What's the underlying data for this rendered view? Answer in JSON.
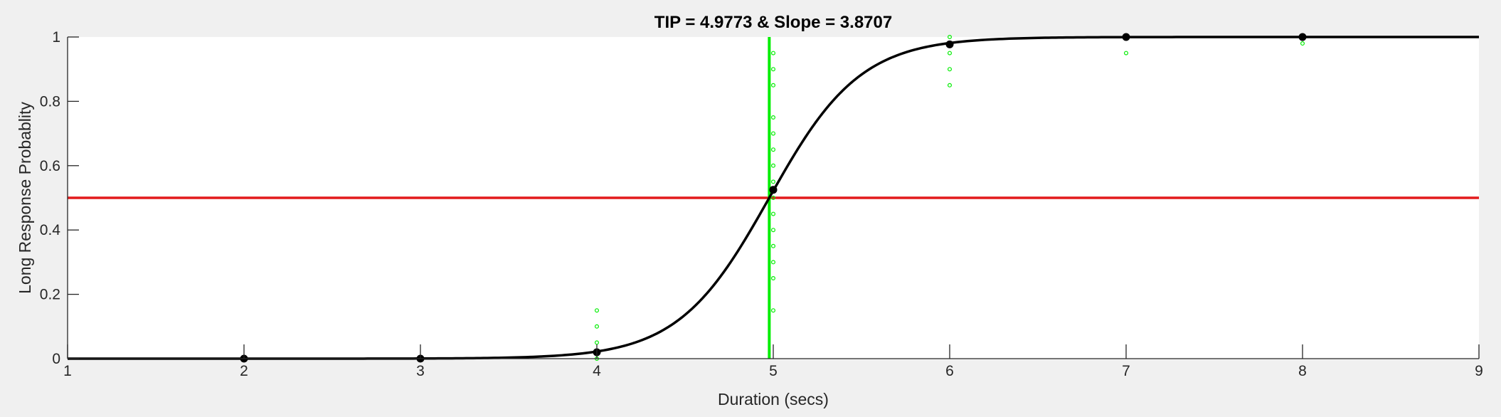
{
  "chart_data": {
    "type": "line",
    "title": "TIP = 4.9773 & Slope = 3.8707",
    "xlabel": "Duration (secs)",
    "ylabel": "Long Response Probablity",
    "xlim": [
      1,
      9
    ],
    "ylim": [
      0,
      1
    ],
    "xticks": [
      1,
      2,
      3,
      4,
      5,
      6,
      7,
      8,
      9
    ],
    "xtick_labels": [
      "1",
      "2",
      "3",
      "4",
      "5",
      "6",
      "7",
      "8",
      "9"
    ],
    "yticks": [
      0,
      0.2,
      0.4,
      0.6,
      0.8,
      1
    ],
    "ytick_labels": [
      "0",
      "0.2",
      "0.4",
      "0.6",
      "0.8",
      "1"
    ],
    "grid": false,
    "legend": false,
    "fit": {
      "model": "logistic",
      "tip": 4.9773,
      "slope": 3.8707,
      "x_range": [
        1,
        9
      ]
    },
    "tip_line": {
      "x": 4.9773,
      "color": "#00ee00"
    },
    "criterion_line": {
      "y": 0.5,
      "color": "#e31a1c"
    },
    "series": [
      {
        "kind": "mean",
        "color": "#000000",
        "points": [
          {
            "x": 2,
            "y": 0.0
          },
          {
            "x": 3,
            "y": 0.0
          },
          {
            "x": 4,
            "y": 0.02
          },
          {
            "x": 5,
            "y": 0.525
          },
          {
            "x": 6,
            "y": 0.977
          },
          {
            "x": 7,
            "y": 1.0
          },
          {
            "x": 8,
            "y": 1.0
          }
        ]
      },
      {
        "kind": "individual",
        "color": "#00ee00",
        "points": [
          {
            "x": 4,
            "y": 0.15
          },
          {
            "x": 4,
            "y": 0.1
          },
          {
            "x": 4,
            "y": 0.05
          },
          {
            "x": 4,
            "y": 0.0
          },
          {
            "x": 5,
            "y": 0.15
          },
          {
            "x": 5,
            "y": 0.25
          },
          {
            "x": 5,
            "y": 0.3
          },
          {
            "x": 5,
            "y": 0.35
          },
          {
            "x": 5,
            "y": 0.4
          },
          {
            "x": 5,
            "y": 0.45
          },
          {
            "x": 5,
            "y": 0.5
          },
          {
            "x": 5,
            "y": 0.55
          },
          {
            "x": 5,
            "y": 0.6
          },
          {
            "x": 5,
            "y": 0.65
          },
          {
            "x": 5,
            "y": 0.7
          },
          {
            "x": 5,
            "y": 0.75
          },
          {
            "x": 5,
            "y": 0.85
          },
          {
            "x": 5,
            "y": 0.9
          },
          {
            "x": 5,
            "y": 0.95
          },
          {
            "x": 6,
            "y": 0.85
          },
          {
            "x": 6,
            "y": 0.9
          },
          {
            "x": 6,
            "y": 0.95
          },
          {
            "x": 6,
            "y": 0.975
          },
          {
            "x": 6,
            "y": 1.0
          },
          {
            "x": 7,
            "y": 0.95
          },
          {
            "x": 7,
            "y": 1.0
          },
          {
            "x": 8,
            "y": 0.98
          },
          {
            "x": 8,
            "y": 1.0
          }
        ]
      }
    ]
  }
}
